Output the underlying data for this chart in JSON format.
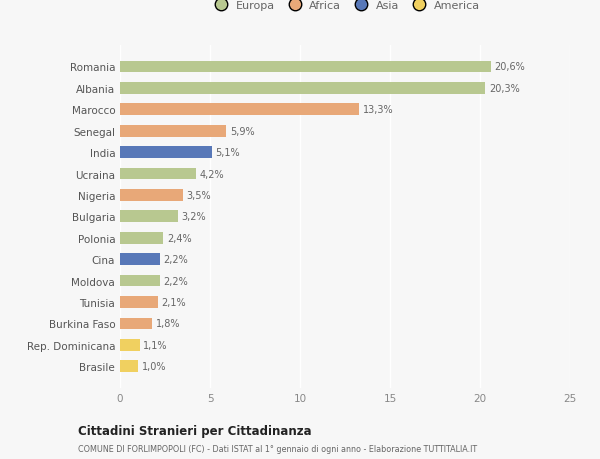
{
  "categories": [
    "Brasile",
    "Rep. Dominicana",
    "Burkina Faso",
    "Tunisia",
    "Moldova",
    "Cina",
    "Polonia",
    "Bulgaria",
    "Nigeria",
    "Ucraina",
    "India",
    "Senegal",
    "Marocco",
    "Albania",
    "Romania"
  ],
  "values": [
    1.0,
    1.1,
    1.8,
    2.1,
    2.2,
    2.2,
    2.4,
    3.2,
    3.5,
    4.2,
    5.1,
    5.9,
    13.3,
    20.3,
    20.6
  ],
  "labels": [
    "1,0%",
    "1,1%",
    "1,8%",
    "2,1%",
    "2,2%",
    "2,2%",
    "2,4%",
    "3,2%",
    "3,5%",
    "4,2%",
    "5,1%",
    "5,9%",
    "13,3%",
    "20,3%",
    "20,6%"
  ],
  "colors": [
    "#f0d060",
    "#f0d060",
    "#e8a878",
    "#e8a878",
    "#b8c890",
    "#5878b8",
    "#b8c890",
    "#b8c890",
    "#e8a878",
    "#b8c890",
    "#5878b8",
    "#e8a878",
    "#e8a878",
    "#b8c890",
    "#b8c890"
  ],
  "legend_labels": [
    "Europa",
    "Africa",
    "Asia",
    "America"
  ],
  "legend_colors": [
    "#b8c890",
    "#e8a878",
    "#5878b8",
    "#f0d060"
  ],
  "xlim": [
    0,
    25
  ],
  "xticks": [
    0,
    5,
    10,
    15,
    20,
    25
  ],
  "title": "Cittadini Stranieri per Cittadinanza",
  "subtitle": "COMUNE DI FORLIMPOPOLI (FC) - Dati ISTAT al 1° gennaio di ogni anno - Elaborazione TUTTITALIA.IT",
  "bg_color": "#f7f7f7",
  "bar_height": 0.55
}
